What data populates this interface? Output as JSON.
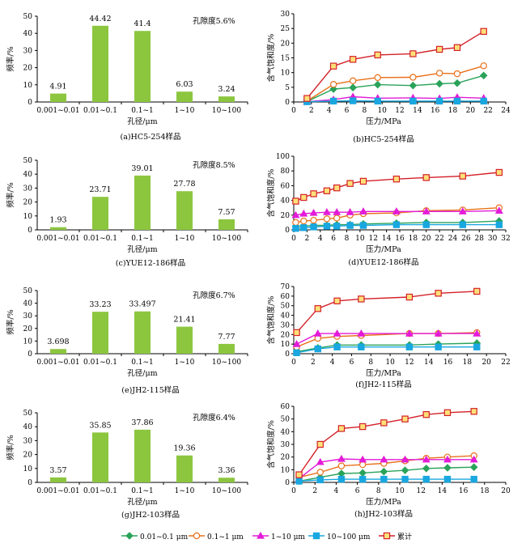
{
  "colors": {
    "bar": "#8cc63f",
    "s1": "#2aa35a",
    "s2": "#e8701a",
    "s3": "#e31bd8",
    "s4": "#19a7e0",
    "s5": "#d32027",
    "s5fill": "#ffe07a"
  },
  "legend": [
    "0.01~0.1 μm",
    "0.1~1 μm",
    "1~10 μm",
    "10~100 μm",
    "累计"
  ],
  "chart_data": [
    {
      "type": "bar",
      "caption": "(a)HC5-254样品",
      "porosity": "孔隙度5.6%",
      "xlabel": "孔径/μm",
      "ylabel": "频率/%",
      "categories": [
        "0.001~0.01",
        "0.01~0.1",
        "0.1~1",
        "1~10",
        "10~100"
      ],
      "values": [
        4.91,
        44.42,
        41.4,
        6.03,
        3.24
      ],
      "labels": [
        "4.91",
        "44.42",
        "41.4",
        "6.03",
        "3.24"
      ],
      "ylim": [
        0,
        50
      ],
      "yticks": [
        0,
        10,
        20,
        30,
        40,
        50
      ]
    },
    {
      "type": "line",
      "caption": "(b)HC5-254样品",
      "xlabel": "压力/MPa",
      "ylabel": "含气饱和度/%",
      "xlim": [
        0,
        24
      ],
      "xticks": [
        0,
        2,
        4,
        6,
        8,
        10,
        12,
        14,
        16,
        18,
        20,
        22,
        24
      ],
      "ylim": [
        0,
        30
      ],
      "yticks": [
        0,
        5,
        10,
        15,
        20,
        25,
        30
      ],
      "x": [
        1.5,
        4.5,
        6.7,
        9.5,
        13.5,
        16.5,
        18.5,
        21.5
      ],
      "series": [
        {
          "name": "0.01~0.1 μm",
          "values": [
            0.2,
            4.4,
            4.9,
            5.9,
            5.6,
            6.2,
            6.4,
            9.0
          ]
        },
        {
          "name": "0.1~1 μm",
          "values": [
            0.3,
            6.0,
            7.2,
            8.3,
            8.4,
            9.8,
            9.6,
            12.3
          ]
        },
        {
          "name": "1~10 μm",
          "values": [
            0.1,
            0.8,
            1.8,
            1.3,
            1.4,
            1.2,
            1.6,
            1.3
          ]
        },
        {
          "name": "10~100 μm",
          "values": [
            0.1,
            0.3,
            0.4,
            0.3,
            0.3,
            0.3,
            0.3,
            0.3
          ]
        },
        {
          "name": "累计",
          "values": [
            1.2,
            12.2,
            14.5,
            16.0,
            16.4,
            17.9,
            18.5,
            24.0
          ]
        }
      ]
    },
    {
      "type": "bar",
      "caption": "(c)YUE12-186样品",
      "porosity": "孔隙度8.5%",
      "xlabel": "孔径/μm",
      "ylabel": "频率/%",
      "categories": [
        "0.001~0.01",
        "0.01~0.1",
        "0.1~1",
        "1~10",
        "10~100"
      ],
      "values": [
        1.93,
        23.71,
        39.01,
        27.78,
        7.57
      ],
      "labels": [
        "1.93",
        "23.71",
        "39.01",
        "27.78",
        "7.57"
      ],
      "ylim": [
        0,
        50
      ],
      "yticks": [
        0,
        10,
        20,
        30,
        40,
        50
      ]
    },
    {
      "type": "line",
      "caption": "(d)YUE12-186样品",
      "xlabel": "压力/MPa",
      "ylabel": "含气饱和度/%",
      "xlim": [
        0,
        32
      ],
      "xticks": [
        0,
        2,
        4,
        6,
        8,
        10,
        12,
        14,
        16,
        18,
        20,
        22,
        24,
        26,
        28,
        30,
        32
      ],
      "ylim": [
        0,
        100
      ],
      "yticks": [
        0,
        20,
        40,
        60,
        80,
        100
      ],
      "x": [
        0.3,
        1.5,
        3,
        5,
        6.5,
        8.5,
        10.5,
        15.5,
        20,
        25.5,
        31
      ],
      "series": [
        {
          "name": "0.01~0.1 μm",
          "values": [
            5,
            5,
            6,
            6,
            7,
            7,
            8,
            9,
            10,
            10,
            12
          ]
        },
        {
          "name": "0.1~1 μm",
          "values": [
            10,
            12,
            13,
            15,
            16,
            20,
            22,
            23,
            26,
            27,
            30
          ]
        },
        {
          "name": "1~10 μm",
          "values": [
            20,
            22,
            23,
            24,
            24,
            24,
            25,
            25,
            25,
            25,
            26
          ]
        },
        {
          "name": "10~100 μm",
          "values": [
            2,
            3,
            4,
            5,
            5,
            6,
            6,
            7,
            7,
            7,
            7
          ]
        },
        {
          "name": "累计",
          "values": [
            39,
            44,
            49,
            53,
            57,
            63,
            66,
            69,
            71,
            73,
            78
          ]
        }
      ]
    },
    {
      "type": "bar",
      "caption": "(e)JH2-115样品",
      "porosity": "孔隙度6.7%",
      "xlabel": "孔径/μm",
      "ylabel": "频率/%",
      "categories": [
        "0.001~0.01",
        "0.01~0.1",
        "0.1~1",
        "1~10",
        "10~100"
      ],
      "values": [
        3.698,
        33.23,
        33.497,
        21.41,
        7.77
      ],
      "labels": [
        "3.698",
        "33.23",
        "33.497",
        "21.41",
        "7.77"
      ],
      "ylim": [
        0,
        50
      ],
      "yticks": [
        0,
        10,
        20,
        30,
        40,
        50
      ]
    },
    {
      "type": "line",
      "caption": "(f)JH2-115样品",
      "xlabel": "压力/MPa",
      "ylabel": "含气饱和度/%",
      "xlim": [
        0,
        22
      ],
      "xticks": [
        0,
        2,
        4,
        6,
        8,
        10,
        12,
        14,
        16,
        18,
        20,
        22
      ],
      "ylim": [
        0,
        70
      ],
      "yticks": [
        0,
        10,
        20,
        30,
        40,
        50,
        60,
        70
      ],
      "x": [
        0.3,
        2.5,
        4.5,
        7,
        12,
        15,
        19
      ],
      "series": [
        {
          "name": "0.01~0.1 μm",
          "values": [
            2,
            6,
            9,
            9,
            9,
            10,
            11
          ]
        },
        {
          "name": "0.1~1 μm",
          "values": [
            7,
            16,
            18,
            19,
            21,
            21,
            22
          ]
        },
        {
          "name": "1~10 μm",
          "values": [
            10,
            21,
            21,
            21,
            21,
            21,
            21
          ]
        },
        {
          "name": "10~100 μm",
          "values": [
            1,
            5,
            7,
            7,
            7,
            7,
            7
          ]
        },
        {
          "name": "累计",
          "values": [
            22,
            47,
            55,
            57,
            59,
            63,
            65
          ]
        }
      ]
    },
    {
      "type": "bar",
      "caption": "(g)JH2-103样品",
      "porosity": "孔隙度6.4%",
      "xlabel": "孔径/μm",
      "ylabel": "频率/%",
      "categories": [
        "0.001~0.01",
        "0.01~0.1",
        "0.1~1",
        "1~10",
        "10~100"
      ],
      "values": [
        3.57,
        35.85,
        37.86,
        19.36,
        3.36
      ],
      "labels": [
        "3.57",
        "35.85",
        "37.86",
        "19.36",
        "3.36"
      ],
      "ylim": [
        0,
        50
      ],
      "yticks": [
        0,
        10,
        20,
        30,
        40,
        50
      ]
    },
    {
      "type": "line",
      "caption": "(h)JH2-103样品",
      "xlabel": "压力/MPa",
      "ylabel": "含气饱和度/%",
      "xlim": [
        0,
        20
      ],
      "xticks": [
        0,
        2,
        4,
        6,
        8,
        10,
        12,
        14,
        16,
        18,
        20
      ],
      "ylim": [
        0,
        60
      ],
      "yticks": [
        0,
        10,
        20,
        30,
        40,
        50,
        60
      ],
      "x": [
        0.5,
        2.5,
        4.5,
        6.5,
        8.5,
        10.5,
        12.5,
        14.5,
        17
      ],
      "series": [
        {
          "name": "0.01~0.1 μm",
          "values": [
            1,
            4,
            7,
            7.5,
            8.5,
            9.5,
            11,
            11.5,
            12
          ]
        },
        {
          "name": "0.1~1 μm",
          "values": [
            4,
            8,
            13,
            14,
            15,
            17,
            19,
            20,
            21
          ]
        },
        {
          "name": "1~10 μm",
          "values": [
            3,
            16,
            18.5,
            18,
            18,
            18,
            18,
            18,
            18
          ]
        },
        {
          "name": "10~100 μm",
          "values": [
            1,
            2,
            2.5,
            2.5,
            2.5,
            2.5,
            2.5,
            2.5,
            2.5
          ]
        },
        {
          "name": "累计",
          "values": [
            6,
            30,
            42.5,
            44,
            47,
            50,
            53.5,
            55,
            56
          ]
        }
      ]
    }
  ]
}
